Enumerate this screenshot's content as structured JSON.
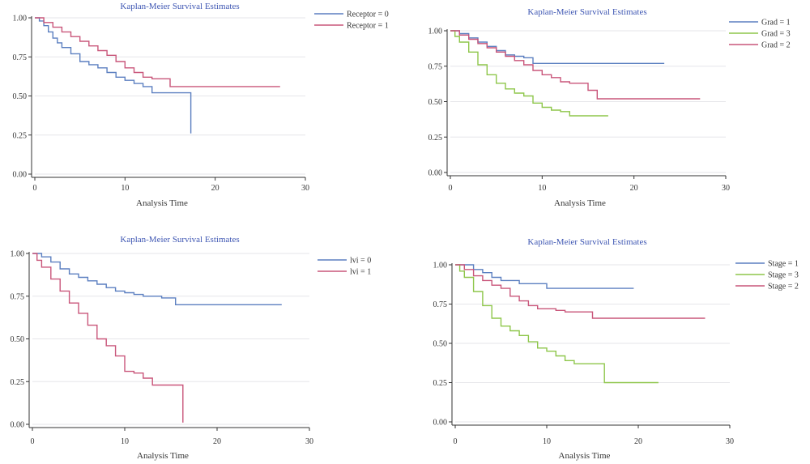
{
  "chart_data": [
    {
      "type": "line",
      "title": "Kaplan-Meier Survival Estimates",
      "xlabel": "Analysis Time",
      "ylabel": "",
      "xlim": [
        0,
        30
      ],
      "ylim": [
        0,
        1
      ],
      "x_ticks": [
        "0",
        "10",
        "20",
        "30"
      ],
      "y_ticks": [
        "0.00",
        "0.25",
        "0.50",
        "0.75",
        "1.00"
      ],
      "grid": true,
      "legend_position": "right",
      "series": [
        {
          "name": "Receptor = 0",
          "color": "#5b7fc0",
          "drop_to": 0.26,
          "points": [
            [
              0,
              1.0
            ],
            [
              0.5,
              0.98
            ],
            [
              1,
              0.95
            ],
            [
              1.5,
              0.91
            ],
            [
              2,
              0.87
            ],
            [
              2.5,
              0.84
            ],
            [
              3,
              0.81
            ],
            [
              4,
              0.77
            ],
            [
              5,
              0.72
            ],
            [
              6,
              0.7
            ],
            [
              7,
              0.68
            ],
            [
              8,
              0.65
            ],
            [
              9,
              0.62
            ],
            [
              10,
              0.6
            ],
            [
              11,
              0.58
            ],
            [
              12,
              0.56
            ],
            [
              13,
              0.52
            ],
            [
              17.3,
              0.52
            ]
          ]
        },
        {
          "name": "Receptor = 1",
          "color": "#c9567a",
          "points": [
            [
              0,
              1.0
            ],
            [
              1,
              0.97
            ],
            [
              2,
              0.94
            ],
            [
              3,
              0.91
            ],
            [
              4,
              0.88
            ],
            [
              5,
              0.85
            ],
            [
              6,
              0.82
            ],
            [
              7,
              0.79
            ],
            [
              8,
              0.76
            ],
            [
              9,
              0.72
            ],
            [
              10,
              0.68
            ],
            [
              11,
              0.65
            ],
            [
              12,
              0.62
            ],
            [
              13,
              0.61
            ],
            [
              15,
              0.56
            ],
            [
              27.2,
              0.56
            ]
          ]
        }
      ]
    },
    {
      "type": "line",
      "title": "Kaplan-Meier Survival Estimates",
      "xlabel": "Analysis Time",
      "ylabel": "",
      "xlim": [
        0,
        30
      ],
      "ylim": [
        0,
        1
      ],
      "x_ticks": [
        "0",
        "10",
        "20",
        "30"
      ],
      "y_ticks": [
        "0.00",
        "0.25",
        "0.50",
        "0.75",
        "1.00"
      ],
      "grid": true,
      "legend_position": "right",
      "series": [
        {
          "name": "Grad = 1",
          "color": "#5b7fc0",
          "points": [
            [
              0,
              1.0
            ],
            [
              1,
              0.98
            ],
            [
              2,
              0.95
            ],
            [
              3,
              0.92
            ],
            [
              4,
              0.89
            ],
            [
              5,
              0.86
            ],
            [
              6,
              0.83
            ],
            [
              7,
              0.82
            ],
            [
              8,
              0.81
            ],
            [
              9,
              0.77
            ],
            [
              23.3,
              0.77
            ]
          ]
        },
        {
          "name": "Grad = 3",
          "color": "#8ec64a",
          "points": [
            [
              0,
              1.0
            ],
            [
              0.5,
              0.96
            ],
            [
              1,
              0.92
            ],
            [
              2,
              0.85
            ],
            [
              3,
              0.76
            ],
            [
              4,
              0.69
            ],
            [
              5,
              0.63
            ],
            [
              6,
              0.59
            ],
            [
              7,
              0.56
            ],
            [
              8,
              0.54
            ],
            [
              9,
              0.49
            ],
            [
              10,
              0.46
            ],
            [
              11,
              0.44
            ],
            [
              12,
              0.43
            ],
            [
              13,
              0.4
            ],
            [
              17.2,
              0.4
            ]
          ]
        },
        {
          "name": "Grad = 2",
          "color": "#c9567a",
          "points": [
            [
              0,
              1.0
            ],
            [
              1,
              0.97
            ],
            [
              2,
              0.94
            ],
            [
              3,
              0.91
            ],
            [
              4,
              0.88
            ],
            [
              5,
              0.85
            ],
            [
              6,
              0.82
            ],
            [
              7,
              0.79
            ],
            [
              8,
              0.76
            ],
            [
              9,
              0.72
            ],
            [
              10,
              0.69
            ],
            [
              11,
              0.67
            ],
            [
              12,
              0.64
            ],
            [
              13,
              0.63
            ],
            [
              15,
              0.58
            ],
            [
              16,
              0.52
            ],
            [
              27.2,
              0.52
            ]
          ]
        }
      ]
    },
    {
      "type": "line",
      "title": "Kaplan-Meier Survival Estimates",
      "xlabel": "Analysis Time",
      "ylabel": "",
      "xlim": [
        0,
        30
      ],
      "ylim": [
        0,
        1
      ],
      "x_ticks": [
        "0",
        "10",
        "20",
        "30"
      ],
      "y_ticks": [
        "0.00",
        "0.25",
        "0.50",
        "0.75",
        "1.00"
      ],
      "grid": true,
      "legend_position": "right",
      "series": [
        {
          "name": "lvi = 0",
          "color": "#5b7fc0",
          "points": [
            [
              0,
              1.0
            ],
            [
              1,
              0.98
            ],
            [
              2,
              0.95
            ],
            [
              3,
              0.91
            ],
            [
              4,
              0.88
            ],
            [
              5,
              0.86
            ],
            [
              6,
              0.84
            ],
            [
              7,
              0.82
            ],
            [
              8,
              0.8
            ],
            [
              9,
              0.78
            ],
            [
              10,
              0.77
            ],
            [
              11,
              0.76
            ],
            [
              12,
              0.75
            ],
            [
              14,
              0.74
            ],
            [
              15.5,
              0.7
            ],
            [
              27,
              0.7
            ]
          ]
        },
        {
          "name": "lvi = 1",
          "color": "#c9567a",
          "drop_to": 0.01,
          "points": [
            [
              0,
              1.0
            ],
            [
              0.5,
              0.96
            ],
            [
              1,
              0.92
            ],
            [
              2,
              0.85
            ],
            [
              3,
              0.78
            ],
            [
              4,
              0.71
            ],
            [
              5,
              0.65
            ],
            [
              6,
              0.58
            ],
            [
              7,
              0.5
            ],
            [
              8,
              0.46
            ],
            [
              9,
              0.4
            ],
            [
              10,
              0.31
            ],
            [
              11,
              0.3
            ],
            [
              12,
              0.27
            ],
            [
              13,
              0.23
            ],
            [
              16.3,
              0.23
            ]
          ]
        }
      ]
    },
    {
      "type": "line",
      "title": "Kaplan-Meier Survival Estimates",
      "xlabel": "Analysis Time",
      "ylabel": "",
      "xlim": [
        0,
        30
      ],
      "ylim": [
        0,
        1
      ],
      "x_ticks": [
        "0",
        "10",
        "20",
        "30"
      ],
      "y_ticks": [
        "0.00",
        "0.25",
        "0.50",
        "0.75",
        "1.00"
      ],
      "grid": true,
      "legend_position": "right",
      "series": [
        {
          "name": "Stage = 1",
          "color": "#5b7fc0",
          "points": [
            [
              0,
              1.0
            ],
            [
              2,
              0.97
            ],
            [
              3,
              0.95
            ],
            [
              4,
              0.92
            ],
            [
              5,
              0.9
            ],
            [
              7,
              0.88
            ],
            [
              10,
              0.85
            ],
            [
              19.5,
              0.85
            ]
          ]
        },
        {
          "name": "Stage = 3",
          "color": "#8ec64a",
          "points": [
            [
              0,
              1.0
            ],
            [
              0.5,
              0.96
            ],
            [
              1,
              0.92
            ],
            [
              2,
              0.83
            ],
            [
              3,
              0.74
            ],
            [
              4,
              0.66
            ],
            [
              5,
              0.61
            ],
            [
              6,
              0.58
            ],
            [
              7,
              0.55
            ],
            [
              8,
              0.51
            ],
            [
              9,
              0.47
            ],
            [
              10,
              0.45
            ],
            [
              11,
              0.42
            ],
            [
              12,
              0.39
            ],
            [
              13,
              0.37
            ],
            [
              16,
              0.37
            ],
            [
              16.3,
              0.25
            ],
            [
              22.2,
              0.25
            ]
          ]
        },
        {
          "name": "Stage = 2",
          "color": "#c9567a",
          "points": [
            [
              0,
              1.0
            ],
            [
              1,
              0.97
            ],
            [
              2,
              0.93
            ],
            [
              3,
              0.9
            ],
            [
              4,
              0.87
            ],
            [
              5,
              0.85
            ],
            [
              6,
              0.8
            ],
            [
              7,
              0.77
            ],
            [
              8,
              0.74
            ],
            [
              9,
              0.72
            ],
            [
              11,
              0.71
            ],
            [
              12,
              0.7
            ],
            [
              15,
              0.66
            ],
            [
              27.3,
              0.66
            ]
          ]
        }
      ]
    }
  ]
}
